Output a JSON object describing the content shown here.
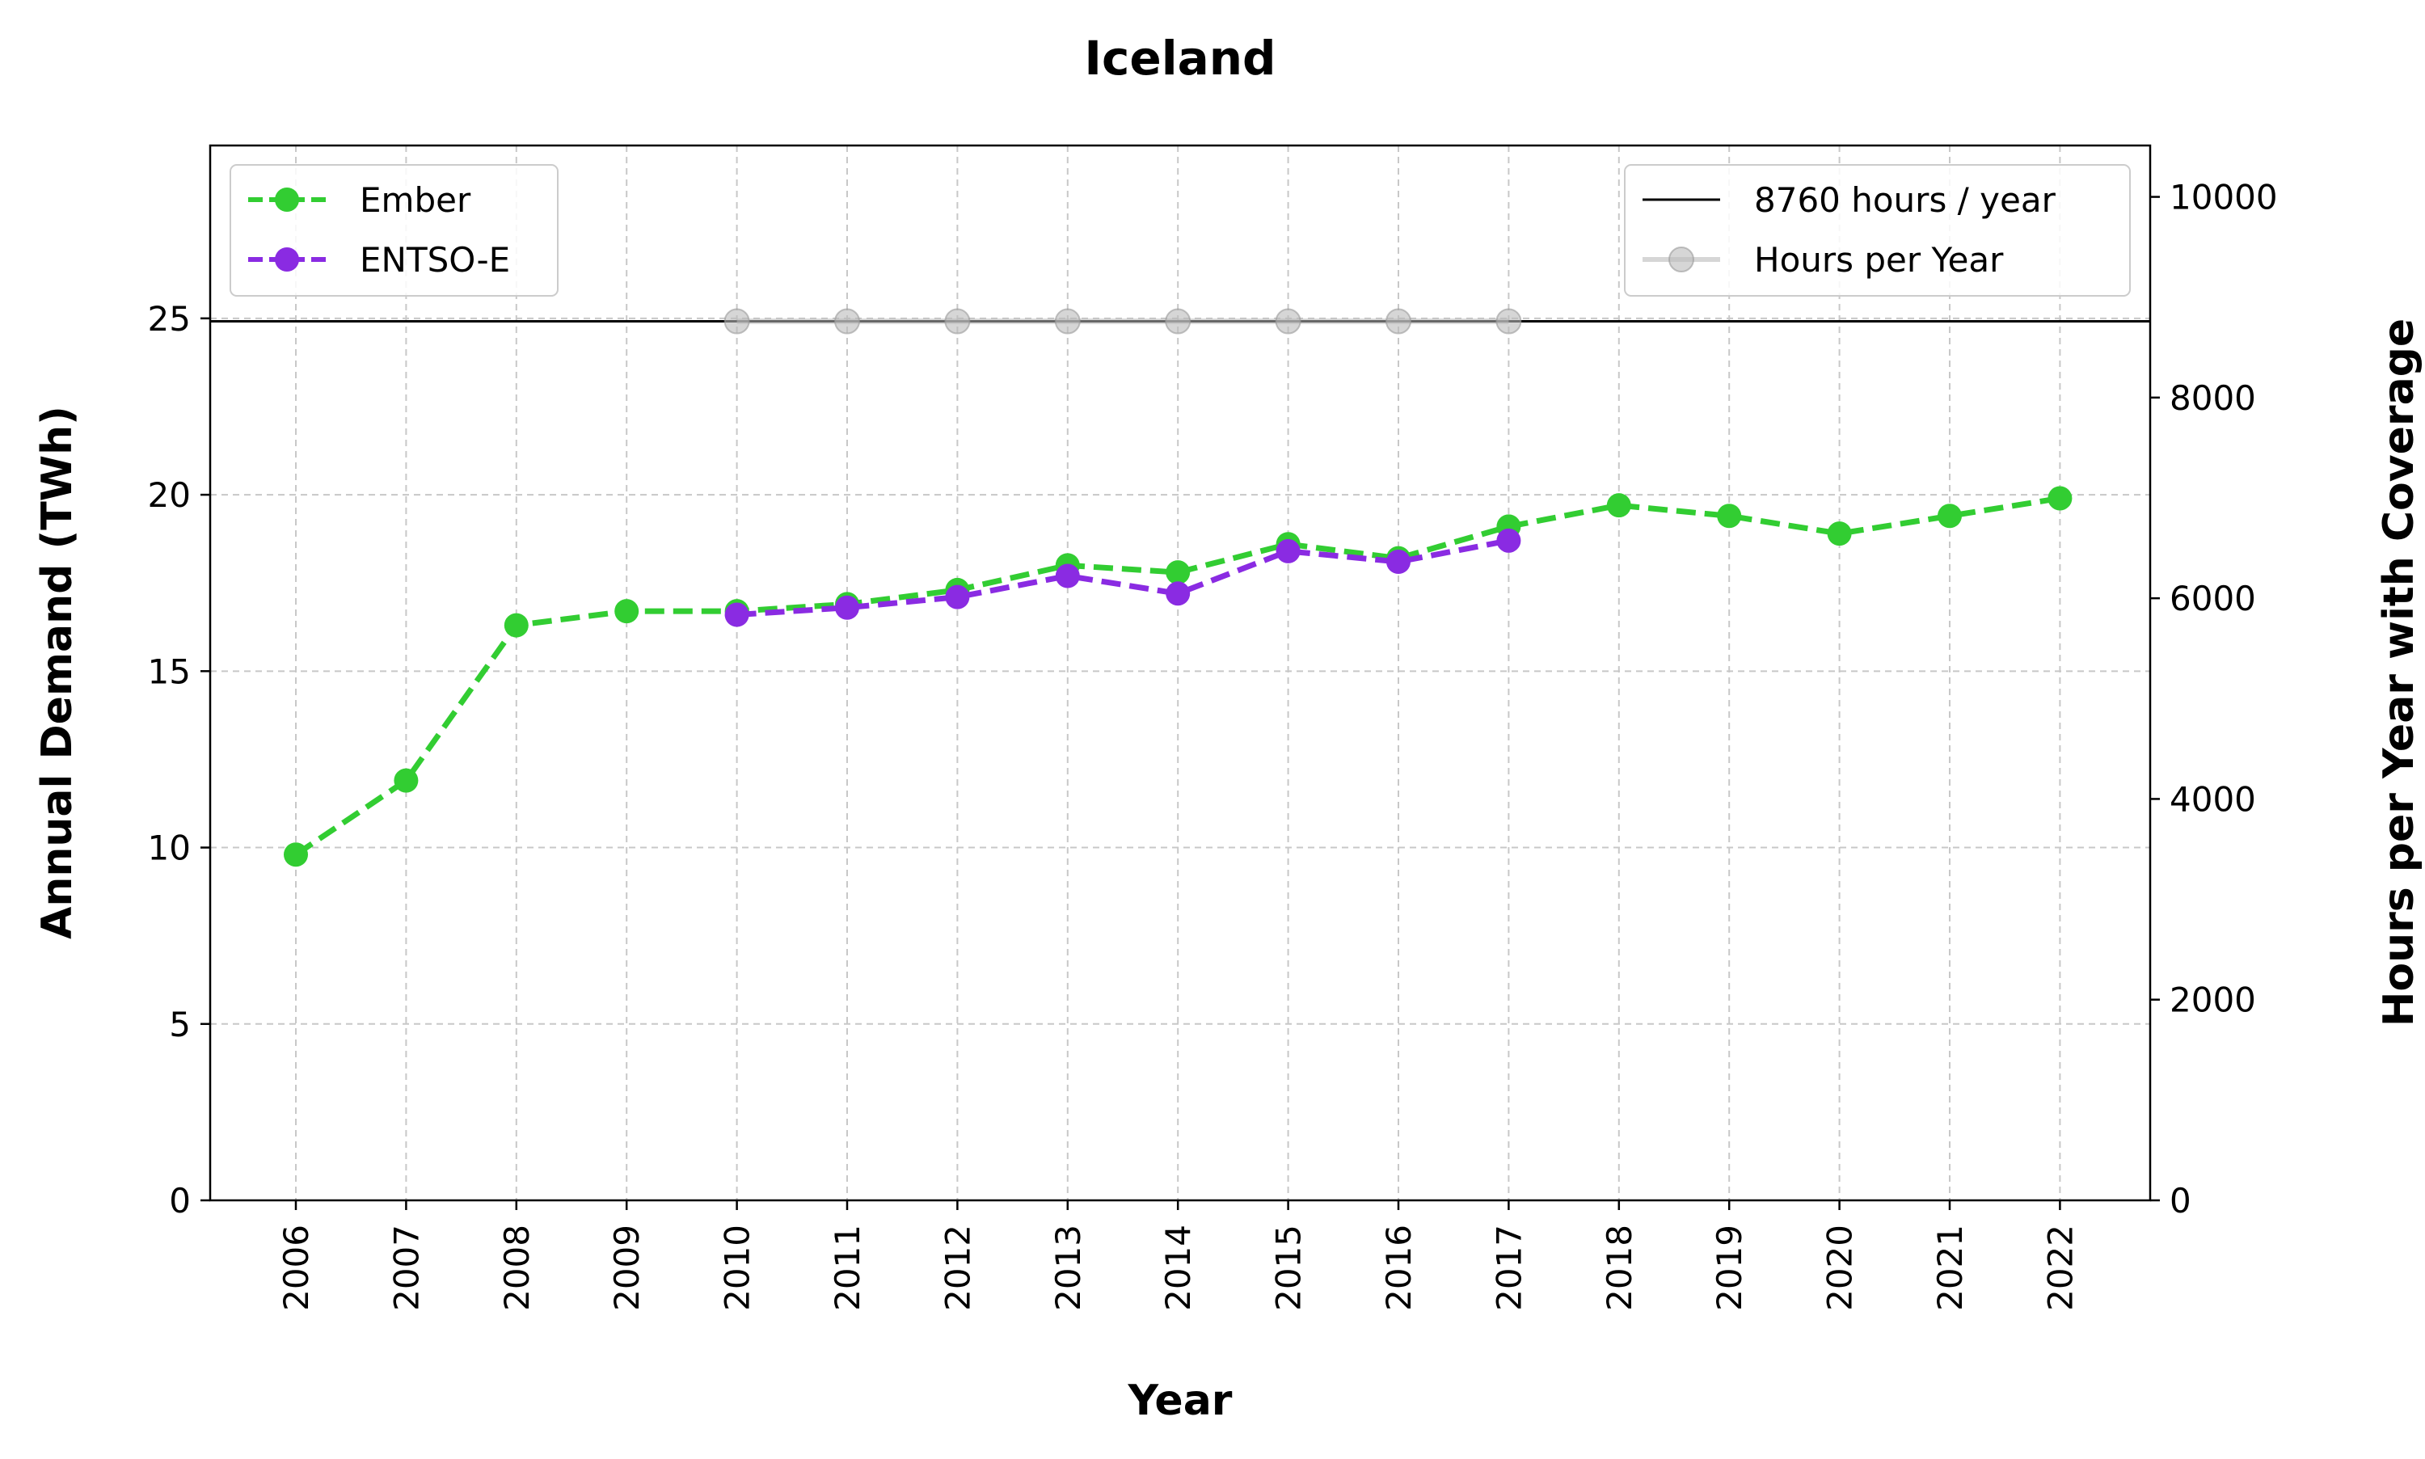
{
  "chart_data": {
    "type": "line",
    "title": "Iceland",
    "xlabel": "Year",
    "ylabel_left": "Annual Demand (TWh)",
    "ylabel_right": "Hours per Year with Coverage",
    "x": [
      2006,
      2007,
      2008,
      2009,
      2010,
      2011,
      2012,
      2013,
      2014,
      2015,
      2016,
      2017,
      2018,
      2019,
      2020,
      2021,
      2022
    ],
    "ylim_left": [
      0,
      29.9
    ],
    "ylim_right": [
      0,
      10512
    ],
    "yticks_left": [
      0,
      5,
      10,
      15,
      20,
      25
    ],
    "yticks_right": [
      0,
      2000,
      4000,
      6000,
      8000,
      10000
    ],
    "grid": true,
    "series": [
      {
        "name": "Ember",
        "axis": "left",
        "color": "#32cd32",
        "style": "dashed",
        "x": [
          2006,
          2007,
          2008,
          2009,
          2010,
          2011,
          2012,
          2013,
          2014,
          2015,
          2016,
          2017,
          2018,
          2019,
          2020,
          2021,
          2022
        ],
        "values": [
          9.8,
          11.9,
          16.3,
          16.7,
          16.7,
          16.9,
          17.3,
          18.0,
          17.8,
          18.6,
          18.2,
          19.1,
          19.7,
          19.4,
          18.9,
          19.4,
          19.9
        ]
      },
      {
        "name": "ENTSO-E",
        "axis": "left",
        "color": "#8a2be2",
        "style": "dashed",
        "x": [
          2010,
          2011,
          2012,
          2013,
          2014,
          2015,
          2016,
          2017
        ],
        "values": [
          16.6,
          16.8,
          17.1,
          17.7,
          17.2,
          18.4,
          18.1,
          18.7
        ]
      },
      {
        "name": "Hours per Year",
        "axis": "right",
        "color": "#bbbbbb",
        "style": "solid",
        "x": [
          2010,
          2011,
          2012,
          2013,
          2014,
          2015,
          2016,
          2017
        ],
        "values": [
          8760,
          8760,
          8760,
          8760,
          8760,
          8760,
          8760,
          8760
        ]
      }
    ],
    "reference_line": {
      "name": "8760 hours / year",
      "axis": "right",
      "value": 8760,
      "color": "#000000"
    },
    "legend_left": {
      "placement": "top-left",
      "entries": [
        "Ember",
        "ENTSO-E"
      ]
    },
    "legend_right": {
      "placement": "top-right",
      "entries": [
        "8760 hours / year",
        "Hours per Year"
      ]
    }
  }
}
